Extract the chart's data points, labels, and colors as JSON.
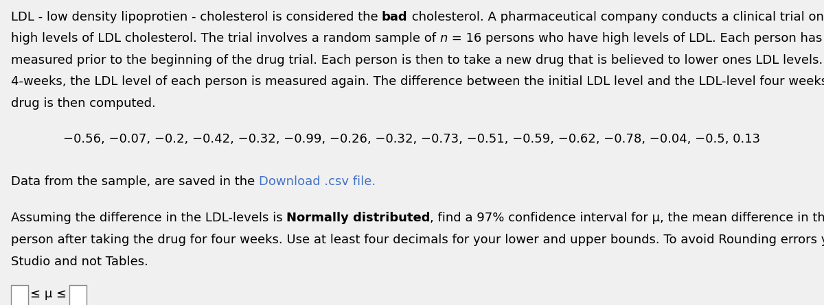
{
  "background_color": "#f0f0f0",
  "text_color": "#000000",
  "link_color": "#4472c4",
  "data_line": "−0.56, −0.07, −0.2, −0.42, −0.32, −0.99, −0.26, −0.32, −0.73, −0.51, −0.59, −0.62, −0.78, −0.04, −0.5, 0.13",
  "paragraph2a": "Data from the sample, are saved in the ",
  "link_text": "Download .csv file.",
  "paragraph3a": "Assuming the difference in the LDL-levels is ",
  "bold3": "Normally distributed",
  "font_size_main": 13.0
}
